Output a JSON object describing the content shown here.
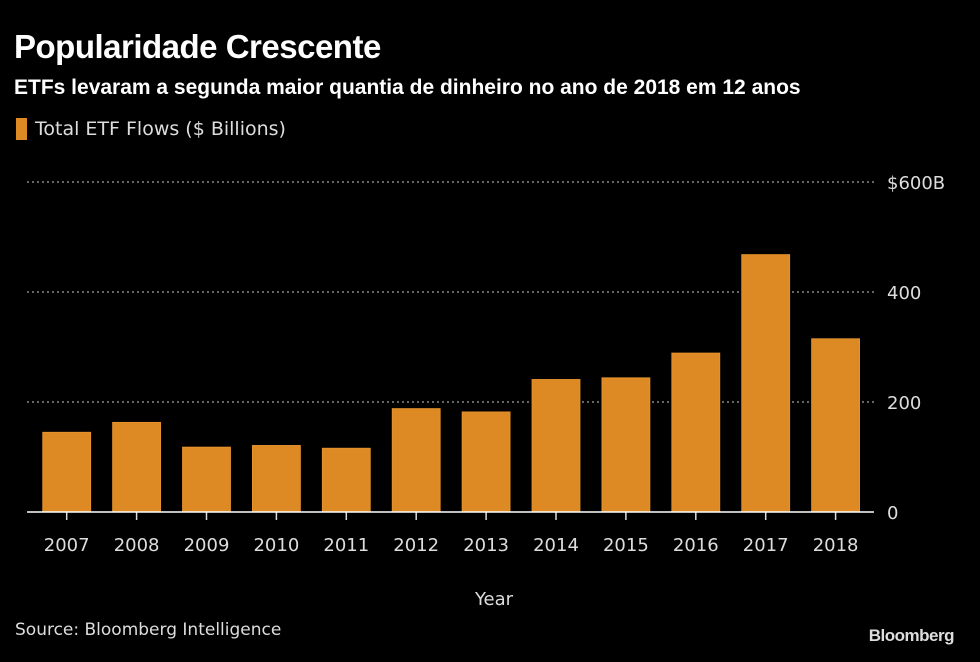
{
  "header": {
    "title": "Popularidade Crescente",
    "subtitle": "ETFs levaram a segunda maior quantia de dinheiro no ano de 2018 em 12 anos"
  },
  "footer": {
    "source": "Source: Bloomberg Intelligence",
    "brand": "Bloomberg"
  },
  "colors": {
    "bar": "#dd8a25",
    "background": "#000000",
    "grid": "#888888",
    "axis": "#ffffff"
  },
  "chart_data": {
    "type": "bar",
    "title": "Popularidade Crescente",
    "subtitle": "ETFs levaram a segunda maior quantia de dinheiro no ano de 2018 em 12 anos",
    "xlabel": "Year",
    "ylabel": "",
    "legend": {
      "position": "top-left",
      "entries": [
        "Total ETF Flows ($ Billions)"
      ]
    },
    "categories": [
      "2007",
      "2008",
      "2009",
      "2010",
      "2011",
      "2012",
      "2013",
      "2014",
      "2015",
      "2016",
      "2017",
      "2018"
    ],
    "series": [
      {
        "name": "Total ETF Flows ($ Billions)",
        "values": [
          145,
          163,
          118,
          121,
          116,
          188,
          182,
          241,
          244,
          289,
          468,
          315
        ]
      }
    ],
    "ylim": [
      0,
      600
    ],
    "yticks": [
      0,
      200,
      400,
      600
    ],
    "ytick_labels": [
      "0",
      "200",
      "400",
      "$600B"
    ],
    "y_axis_side": "right",
    "grid": true,
    "grid_style": "dotted"
  }
}
